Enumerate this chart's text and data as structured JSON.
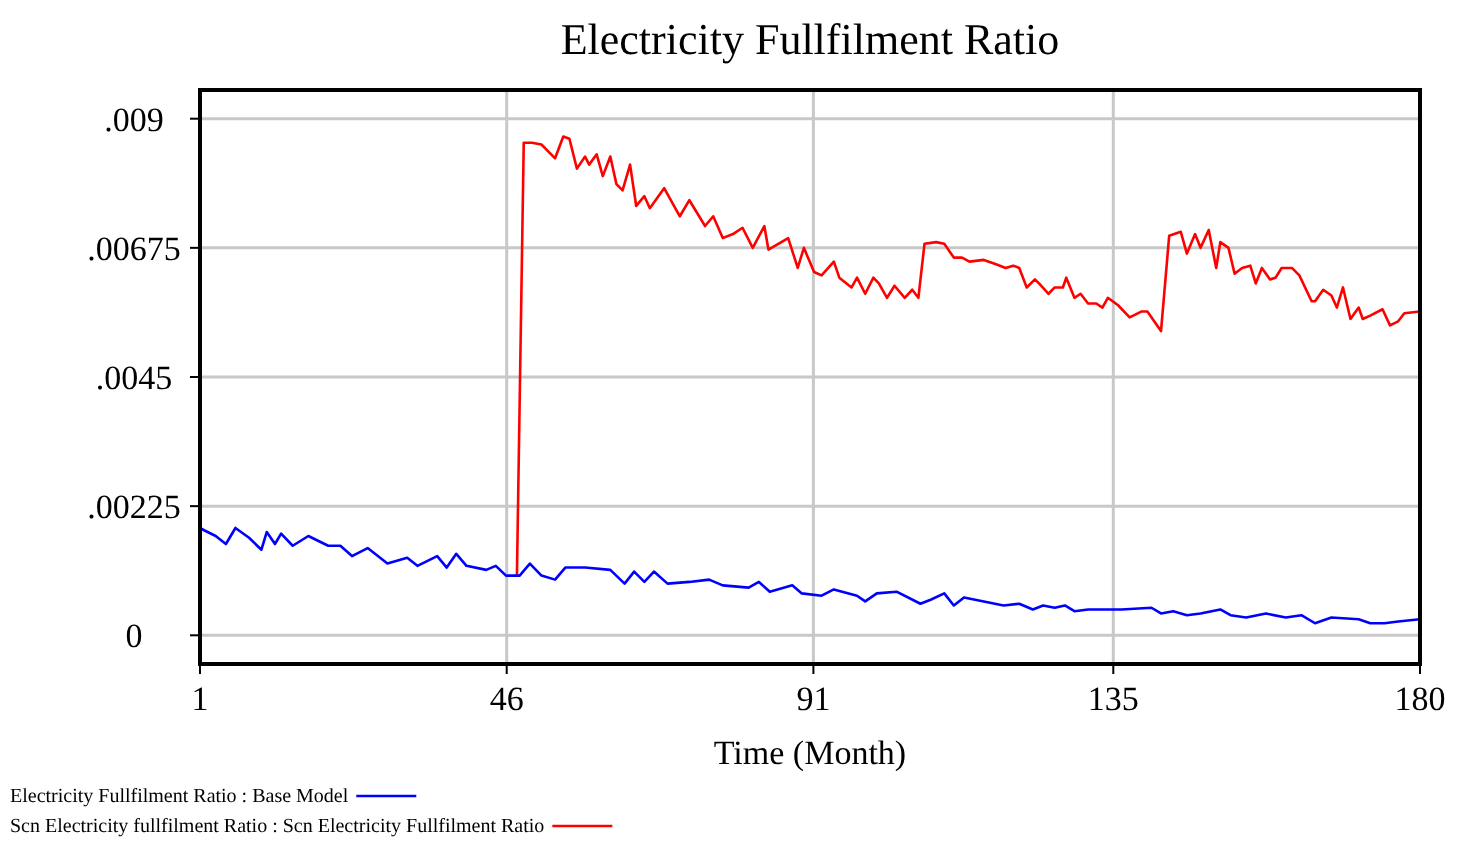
{
  "chart_data": {
    "type": "line",
    "title": "Electricity Fullfilment Ratio",
    "xlabel": "Time (Month)",
    "xlim": [
      1,
      180
    ],
    "xticks": [
      1,
      46,
      91,
      135,
      180
    ],
    "ylim": [
      -0.0005,
      0.0095
    ],
    "yticks": [
      0,
      {
        "value": 0.00225,
        "label": ".00225"
      },
      {
        "value": 0.0045,
        "label": ".0045"
      },
      {
        "value": 0.00675,
        "label": ".00675"
      },
      {
        "value": 0.009,
        "label": ".009"
      }
    ],
    "grid": true,
    "legend": "bottom",
    "marker": "none",
    "line_style": "solid",
    "series": [
      {
        "name": "Electricity Fullfilment Ratio : Base Model",
        "color": "#0000ff",
        "x": [
          1,
          1.6,
          3.3,
          4.8,
          6.2,
          8.2,
          10.0,
          10.8,
          12.0,
          12.9,
          14.6,
          16.9,
          19.8,
          21.6,
          23.3,
          25.6,
          28.5,
          31.4,
          32.9,
          35.8,
          37.2,
          38.6,
          40.1,
          43.0,
          44.4,
          45.9,
          47.9,
          49.4,
          51.1,
          53.1,
          54.6,
          57.5,
          61.2,
          63.3,
          64.7,
          66.2,
          67.6,
          69.6,
          72.8,
          75.7,
          77.7,
          81.5,
          83.0,
          84.6,
          87.9,
          89.3,
          92.2,
          94.0,
          97.4,
          98.6,
          100.3,
          103.2,
          106.7,
          108.2,
          110.2,
          111.6,
          113.1,
          116.0,
          118.9,
          121.2,
          123.2,
          124.7,
          126.4,
          127.9,
          129.3,
          131.3,
          133.4,
          136.2,
          140.6,
          142.0,
          143.8,
          145.8,
          147.8,
          150.7,
          152.2,
          154.5,
          157.4,
          160.3,
          162.6,
          164.6,
          167.0,
          171.0,
          172.7,
          174.8,
          176.8,
          180
        ],
        "values": [
          0.00187,
          0.00183,
          0.00173,
          0.00159,
          0.00187,
          0.0017,
          0.00149,
          0.0018,
          0.00159,
          0.00177,
          0.00156,
          0.00173,
          0.00156,
          0.00156,
          0.00138,
          0.00152,
          0.00125,
          0.00135,
          0.00121,
          0.00138,
          0.00118,
          0.00142,
          0.00121,
          0.00114,
          0.00121,
          0.00104,
          0.00104,
          0.00125,
          0.00104,
          0.00097,
          0.00118,
          0.00118,
          0.00114,
          0.0009,
          0.00111,
          0.00093,
          0.00111,
          0.0009,
          0.00093,
          0.00097,
          0.00087,
          0.00083,
          0.00093,
          0.00076,
          0.00087,
          0.00073,
          0.00069,
          0.0008,
          0.00069,
          0.00059,
          0.00073,
          0.00076,
          0.00055,
          0.00062,
          0.00073,
          0.00052,
          0.00066,
          0.00059,
          0.00052,
          0.00055,
          0.00045,
          0.00052,
          0.00048,
          0.00052,
          0.00042,
          0.00045,
          0.00045,
          0.00045,
          0.00048,
          0.00038,
          0.00042,
          0.00035,
          0.00038,
          0.00045,
          0.00035,
          0.00031,
          0.00038,
          0.00031,
          0.00035,
          0.00021,
          0.00031,
          0.00028,
          0.00021,
          0.00021,
          0.00024,
          0.00028
        ]
      },
      {
        "name": "Scn Electricity fullfilment Ratio : Scn Electricity Fullfilment Ratio",
        "color": "#ff0000",
        "x": [
          47.5,
          48.5,
          49.7,
          51.1,
          53.1,
          54.3,
          55.2,
          56.3,
          57.5,
          58.1,
          59.2,
          60.1,
          61.2,
          62.1,
          63.0,
          64.1,
          65.0,
          66.2,
          67.0,
          69.1,
          71.4,
          72.8,
          75.1,
          76.3,
          77.7,
          79.2,
          80.6,
          82.1,
          83.8,
          84.4,
          87.3,
          88.7,
          89.6,
          91.1,
          92.2,
          94.0,
          94.8,
          96.6,
          97.4,
          98.6,
          99.8,
          100.6,
          101.8,
          102.9,
          104.4,
          105.5,
          106.4,
          107.3,
          109.0,
          110.2,
          111.6,
          112.8,
          113.9,
          116.0,
          117.7,
          119.2,
          120.3,
          121.2,
          122.3,
          123.5,
          124.1,
          125.5,
          126.4,
          127.6,
          128.1,
          129.3,
          130.2,
          131.3,
          132.5,
          133.4,
          134.2,
          135.7,
          137.4,
          139.1,
          140.0,
          142.0,
          143.2,
          144.9,
          145.8,
          147.0,
          147.8,
          149.0,
          150.1,
          150.7,
          151.9,
          152.8,
          153.9,
          155.1,
          155.9,
          156.8,
          158.0,
          158.8,
          159.7,
          161.2,
          162.3,
          164.1,
          164.6,
          165.8,
          167.0,
          167.8,
          168.7,
          169.8,
          171.0,
          171.6,
          172.7,
          174.5,
          175.6,
          176.8,
          177.7,
          180
        ],
        "values": [
          0.00104,
          0.00858,
          0.00858,
          0.00855,
          0.00831,
          0.00869,
          0.00865,
          0.00813,
          0.00834,
          0.0082,
          0.00838,
          0.008,
          0.00834,
          0.00786,
          0.00775,
          0.0082,
          0.00748,
          0.00765,
          0.00744,
          0.00779,
          0.0073,
          0.00758,
          0.00713,
          0.0073,
          0.00692,
          0.00699,
          0.0071,
          0.00675,
          0.00713,
          0.00672,
          0.00692,
          0.0064,
          0.00675,
          0.00633,
          0.00627,
          0.00651,
          0.00623,
          0.00606,
          0.00623,
          0.00595,
          0.00623,
          0.00613,
          0.00588,
          0.00609,
          0.00588,
          0.00602,
          0.00588,
          0.00682,
          0.00685,
          0.00682,
          0.00658,
          0.00658,
          0.00651,
          0.00654,
          0.00647,
          0.0064,
          0.00644,
          0.0064,
          0.00606,
          0.0062,
          0.00613,
          0.00595,
          0.00606,
          0.00606,
          0.00623,
          0.00588,
          0.00595,
          0.00578,
          0.00578,
          0.00571,
          0.00588,
          0.00575,
          0.00554,
          0.00564,
          0.00564,
          0.0053,
          0.00696,
          0.00703,
          0.00665,
          0.00699,
          0.00675,
          0.00706,
          0.0064,
          0.00685,
          0.00675,
          0.0063,
          0.0064,
          0.00644,
          0.00613,
          0.0064,
          0.0062,
          0.00623,
          0.0064,
          0.0064,
          0.00627,
          0.00582,
          0.00582,
          0.00602,
          0.00592,
          0.00571,
          0.00606,
          0.00551,
          0.00571,
          0.00551,
          0.00557,
          0.00568,
          0.0054,
          0.00547,
          0.00561,
          0.00564
        ]
      }
    ]
  }
}
